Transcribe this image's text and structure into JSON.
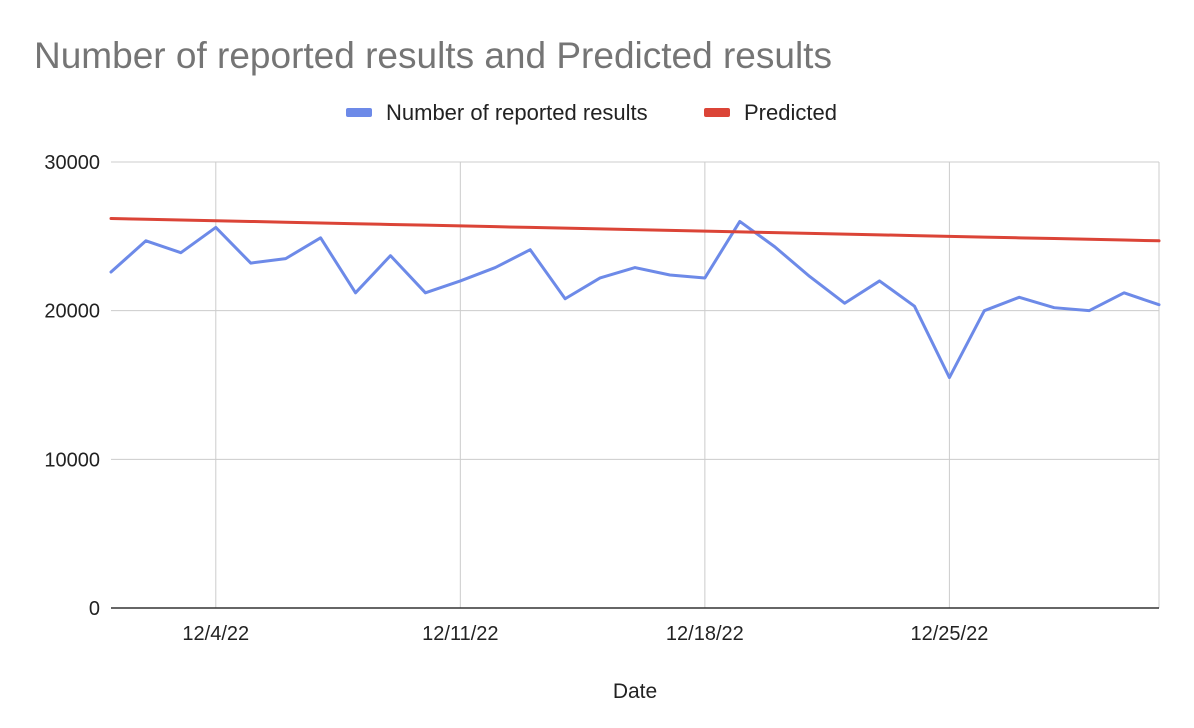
{
  "chart_data": {
    "type": "line",
    "title": "Number of reported results and Predicted results",
    "xlabel": "Date",
    "ylabel": "",
    "ylim": [
      0,
      30000
    ],
    "yticks": [
      0,
      10000,
      20000,
      30000
    ],
    "xlim": [
      "2022-12-01",
      "2022-12-31"
    ],
    "xticks": [
      {
        "date": "2022-12-04",
        "label": "12/4/22"
      },
      {
        "date": "2022-12-11",
        "label": "12/11/22"
      },
      {
        "date": "2022-12-18",
        "label": "12/18/22"
      },
      {
        "date": "2022-12-25",
        "label": "12/25/22"
      }
    ],
    "grid": true,
    "legend_position": "top",
    "x": [
      "2022-12-01",
      "2022-12-02",
      "2022-12-03",
      "2022-12-04",
      "2022-12-05",
      "2022-12-06",
      "2022-12-07",
      "2022-12-08",
      "2022-12-09",
      "2022-12-10",
      "2022-12-11",
      "2022-12-12",
      "2022-12-13",
      "2022-12-14",
      "2022-12-15",
      "2022-12-16",
      "2022-12-17",
      "2022-12-18",
      "2022-12-19",
      "2022-12-20",
      "2022-12-21",
      "2022-12-22",
      "2022-12-23",
      "2022-12-24",
      "2022-12-25",
      "2022-12-26",
      "2022-12-27",
      "2022-12-28",
      "2022-12-29",
      "2022-12-30",
      "2022-12-31"
    ],
    "series": [
      {
        "name": "Number of reported results",
        "color": "#6d8ae8",
        "values": [
          22600,
          24700,
          23900,
          25600,
          23200,
          23500,
          24900,
          21200,
          23700,
          21200,
          22000,
          22900,
          24100,
          20800,
          22200,
          22900,
          22400,
          22200,
          26000,
          24300,
          22300,
          20500,
          22000,
          20300,
          15500,
          20000,
          20900,
          20200,
          20000,
          21200,
          20400
        ]
      },
      {
        "name": "Predicted",
        "color": "#db4437",
        "values": [
          26200,
          26150,
          26100,
          26050,
          26000,
          25950,
          25900,
          25850,
          25800,
          25750,
          25700,
          25650,
          25600,
          25550,
          25500,
          25450,
          25400,
          25350,
          25300,
          25250,
          25200,
          25150,
          25100,
          25050,
          25000,
          24950,
          24900,
          24850,
          24800,
          24750,
          24700
        ]
      }
    ]
  }
}
